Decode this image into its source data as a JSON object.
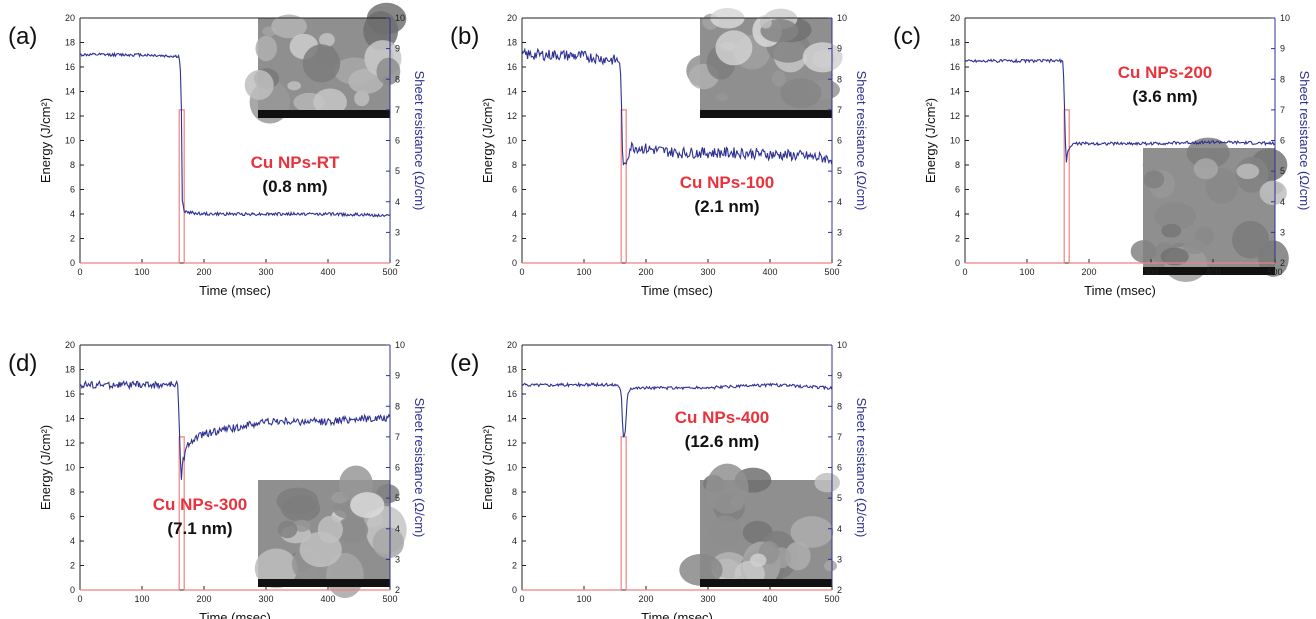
{
  "colors": {
    "energy": "#f08080",
    "resistance": "#2e3192",
    "annotation": "#e8323c",
    "axis": "#222222"
  },
  "chart_data": [
    {
      "type": "line",
      "panel_label": "(a)",
      "xlabel": "Time  (msec)",
      "ylabel": "Energy (J/cm²)",
      "y2label": "Sheet resistance (Ω/cm)",
      "xlim": [
        0,
        500
      ],
      "ylim": [
        0,
        20
      ],
      "y2lim": [
        2,
        10
      ],
      "xticks": [
        "0",
        "100",
        "200",
        "300",
        "400",
        "500"
      ],
      "yticks": [
        "0",
        "2",
        "4",
        "6",
        "8",
        "10",
        "12",
        "14",
        "16",
        "18",
        "20"
      ],
      "y2ticks": [
        "2",
        "3",
        "4",
        "5",
        "6",
        "7",
        "8",
        "9",
        "10"
      ],
      "annotation": "Cu NPs-RT",
      "annotation_value": "(0.8 nm)",
      "inset": "SEM image",
      "series": [
        {
          "axis": "left",
          "x": [
            0,
            160,
            160,
            168,
            168,
            500
          ],
          "y": [
            0,
            0,
            12.5,
            12.5,
            0,
            0
          ],
          "noise": 0
        },
        {
          "axis": "right",
          "x": [
            0,
            50,
            100,
            150,
            160,
            163,
            165,
            168,
            175,
            200,
            300,
            400,
            500
          ],
          "y": [
            8.8,
            8.8,
            8.8,
            8.75,
            8.75,
            8.0,
            4.0,
            3.7,
            3.65,
            3.6,
            3.6,
            3.6,
            3.55
          ],
          "noise": 0.05
        }
      ]
    },
    {
      "type": "line",
      "panel_label": "(b)",
      "xlabel": "Time  (msec)",
      "ylabel": "Energy (J/cm²)",
      "y2label": "Sheet resistance (Ω/cm)",
      "xlim": [
        0,
        500
      ],
      "ylim": [
        0,
        20
      ],
      "y2lim": [
        2,
        10
      ],
      "xticks": [
        "0",
        "100",
        "200",
        "300",
        "400",
        "500"
      ],
      "yticks": [
        "0",
        "2",
        "4",
        "6",
        "8",
        "10",
        "12",
        "14",
        "16",
        "18",
        "20"
      ],
      "y2ticks": [
        "2",
        "3",
        "4",
        "5",
        "6",
        "7",
        "8",
        "9",
        "10"
      ],
      "annotation": "Cu NPs-100",
      "annotation_value": "(2.1 nm)",
      "inset": "SEM image",
      "series": [
        {
          "axis": "left",
          "x": [
            0,
            160,
            160,
            168,
            168,
            500
          ],
          "y": [
            0,
            0,
            12.5,
            12.5,
            0,
            0
          ],
          "noise": 0
        },
        {
          "axis": "right",
          "x": [
            0,
            50,
            100,
            158,
            160,
            163,
            166,
            175,
            250,
            350,
            450,
            500
          ],
          "y": [
            8.8,
            8.8,
            8.75,
            8.6,
            7.5,
            5.0,
            5.2,
            5.8,
            5.6,
            5.6,
            5.5,
            5.4
          ],
          "noise": 0.18
        }
      ]
    },
    {
      "type": "line",
      "panel_label": "(c)",
      "xlabel": "Time  (msec)",
      "ylabel": "Energy (J/cm²)",
      "y2label": "Sheet resistance (Ω/cm)",
      "xlim": [
        0,
        500
      ],
      "ylim": [
        0,
        20
      ],
      "y2lim": [
        2,
        10
      ],
      "xticks": [
        "0",
        "100",
        "200",
        "300",
        "400",
        "500"
      ],
      "yticks": [
        "0",
        "2",
        "4",
        "6",
        "8",
        "10",
        "12",
        "14",
        "16",
        "18",
        "20"
      ],
      "y2ticks": [
        "2",
        "3",
        "4",
        "5",
        "6",
        "7",
        "8",
        "9",
        "10"
      ],
      "annotation": "Cu NPs-200",
      "annotation_value": "(3.6 nm)",
      "inset": "SEM image",
      "series": [
        {
          "axis": "left",
          "x": [
            0,
            160,
            160,
            168,
            168,
            500
          ],
          "y": [
            0,
            0,
            12.5,
            12.5,
            0,
            0
          ],
          "noise": 0
        },
        {
          "axis": "right",
          "x": [
            0,
            50,
            100,
            158,
            160,
            163,
            166,
            175,
            200,
            300,
            400,
            500
          ],
          "y": [
            8.6,
            8.6,
            8.6,
            8.6,
            7.5,
            5.2,
            5.7,
            5.9,
            5.9,
            5.9,
            5.95,
            5.9
          ],
          "noise": 0.05
        }
      ]
    },
    {
      "type": "line",
      "panel_label": "(d)",
      "xlabel": "Time  (msec)",
      "ylabel": "Energy (J/cm²)",
      "y2label": "Sheet resistance (Ω/cm)",
      "xlim": [
        0,
        500
      ],
      "ylim": [
        0,
        20
      ],
      "y2lim": [
        2,
        10
      ],
      "xticks": [
        "0",
        "100",
        "200",
        "300",
        "400",
        "500"
      ],
      "yticks": [
        "0",
        "2",
        "4",
        "6",
        "8",
        "10",
        "12",
        "14",
        "16",
        "18",
        "20"
      ],
      "y2ticks": [
        "2",
        "3",
        "4",
        "5",
        "6",
        "7",
        "8",
        "9",
        "10"
      ],
      "annotation": "Cu NPs-300",
      "annotation_value": "(7.1 nm)",
      "inset": "SEM image",
      "series": [
        {
          "axis": "left",
          "x": [
            0,
            160,
            160,
            168,
            168,
            500
          ],
          "y": [
            0,
            0,
            12.5,
            12.5,
            0,
            0
          ],
          "noise": 0
        },
        {
          "axis": "right",
          "x": [
            0,
            50,
            100,
            158,
            160,
            163,
            166,
            175,
            200,
            250,
            300,
            350,
            400,
            450,
            500
          ],
          "y": [
            8.7,
            8.7,
            8.7,
            8.7,
            7.5,
            5.6,
            6.2,
            6.8,
            7.1,
            7.3,
            7.5,
            7.5,
            7.5,
            7.6,
            7.6
          ],
          "noise": 0.12
        }
      ]
    },
    {
      "type": "line",
      "panel_label": "(e)",
      "xlabel": "Time  (msec)",
      "ylabel": "Energy (J/cm²)",
      "y2label": "Sheet resistance (Ω/cm)",
      "xlim": [
        0,
        500
      ],
      "ylim": [
        0,
        20
      ],
      "y2lim": [
        2,
        10
      ],
      "xticks": [
        "0",
        "100",
        "200",
        "300",
        "400",
        "500"
      ],
      "yticks": [
        "0",
        "2",
        "4",
        "6",
        "8",
        "10",
        "12",
        "14",
        "16",
        "18",
        "20"
      ],
      "y2ticks": [
        "2",
        "3",
        "4",
        "5",
        "6",
        "7",
        "8",
        "9",
        "10"
      ],
      "annotation": "Cu NPs-400",
      "annotation_value": "(12.6 nm)",
      "inset": "SEM image",
      "series": [
        {
          "axis": "left",
          "x": [
            0,
            160,
            160,
            168,
            168,
            500
          ],
          "y": [
            0,
            0,
            12.5,
            12.5,
            0,
            0
          ],
          "noise": 0
        },
        {
          "axis": "right",
          "x": [
            0,
            50,
            100,
            155,
            160,
            163,
            166,
            170,
            175,
            200,
            250,
            300,
            400,
            500
          ],
          "y": [
            8.7,
            8.7,
            8.7,
            8.7,
            8.5,
            7.0,
            7.0,
            8.4,
            8.6,
            8.6,
            8.6,
            8.6,
            8.7,
            8.6
          ],
          "noise": 0.05
        }
      ]
    }
  ]
}
